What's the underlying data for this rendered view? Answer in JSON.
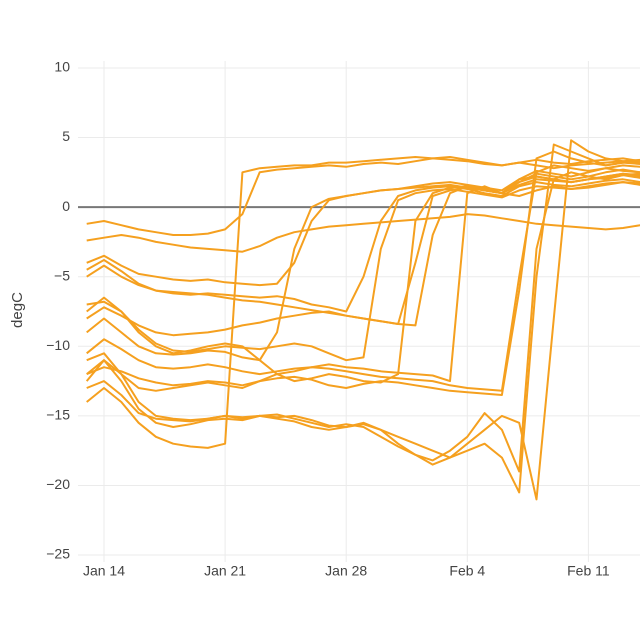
{
  "chart_data": {
    "type": "line",
    "y_label": "degC",
    "color": "#f5a01f",
    "grid": true,
    "zeroline": true,
    "ylim": [
      -25.5,
      10.5
    ],
    "yticks": [
      {
        "value": -25,
        "label": "−25"
      },
      {
        "value": -20,
        "label": "−20"
      },
      {
        "value": -15,
        "label": "−15"
      },
      {
        "value": -10,
        "label": "−10"
      },
      {
        "value": -5,
        "label": "−5"
      },
      0,
      5,
      10
    ],
    "categories": [
      null,
      "Jan 14",
      null,
      null,
      null,
      null,
      null,
      null,
      "Jan 21",
      null,
      null,
      null,
      null,
      null,
      null,
      "Jan 28",
      null,
      null,
      null,
      null,
      null,
      null,
      "Feb 4",
      null,
      null,
      null,
      null,
      null,
      null,
      "Feb 11",
      null,
      null,
      null
    ],
    "series": [
      {
        "values": [
          -1.2,
          -1.0,
          -1.3,
          -1.6,
          -1.8,
          -2.0,
          -2.0,
          -1.9,
          -1.6,
          -0.5,
          2.5,
          2.7,
          2.8,
          2.9,
          3.0,
          2.9,
          3.1,
          3.2,
          3.1,
          3.3,
          3.5,
          3.6,
          3.4,
          3.2,
          3.0,
          3.2,
          3.0,
          2.8,
          3.0,
          3.1,
          3.2,
          3.3,
          3.2
        ]
      },
      {
        "values": [
          -2.4,
          -2.2,
          -2.0,
          -2.2,
          -2.5,
          -2.7,
          -2.9,
          -3.0,
          -3.1,
          -3.2,
          -2.8,
          -2.2,
          -1.8,
          -1.6,
          -1.4,
          -1.3,
          -1.2,
          -1.1,
          -1.0,
          -0.9,
          -0.8,
          -0.7,
          -0.5,
          -0.6,
          -0.8,
          -1.0,
          -1.2,
          -1.3,
          -1.4,
          -1.5,
          -1.6,
          -1.5,
          -1.3
        ]
      },
      {
        "values": [
          -4.0,
          -3.5,
          -4.2,
          -4.8,
          -5.0,
          -5.2,
          -5.3,
          -5.2,
          -5.4,
          -5.5,
          -5.6,
          -5.5,
          -4.0,
          -1.0,
          0.5,
          0.8,
          1.0,
          1.2,
          1.3,
          1.5,
          1.7,
          1.8,
          1.6,
          1.4,
          1.2,
          2.0,
          2.2,
          2.0,
          1.8,
          2.0,
          2.2,
          2.4,
          2.3
        ]
      },
      {
        "values": [
          -4.5,
          -3.8,
          -4.6,
          -5.5,
          -6.0,
          -6.2,
          -6.3,
          -6.2,
          -6.3,
          -6.4,
          -6.5,
          -6.4,
          -6.6,
          -7.0,
          -7.2,
          -7.5,
          -5.0,
          -1.0,
          0.8,
          1.2,
          1.4,
          1.5,
          1.3,
          1.0,
          0.8,
          1.5,
          1.8,
          1.6,
          1.5,
          1.7,
          1.9,
          2.0,
          1.8
        ]
      },
      {
        "values": [
          -5.0,
          -4.2,
          -5.0,
          -5.6,
          -6.0,
          -6.1,
          -6.2,
          -6.3,
          -6.5,
          -6.7,
          -6.8,
          -7.0,
          -7.2,
          -7.4,
          -7.6,
          -7.8,
          -8.0,
          -8.2,
          -8.4,
          -4.0,
          0.8,
          1.2,
          1.4,
          1.2,
          1.0,
          2.0,
          2.6,
          2.4,
          2.2,
          2.5,
          2.8,
          2.6,
          2.5
        ]
      },
      {
        "values": [
          -8.0,
          -7.2,
          -7.8,
          -8.5,
          -9.0,
          -9.2,
          -9.1,
          -9.0,
          -8.8,
          -8.5,
          -8.3,
          -8.0,
          -7.8,
          -7.6,
          -7.5,
          -7.8,
          -8.0,
          -8.2,
          -8.4,
          -8.5,
          -2.0,
          1.0,
          1.5,
          1.2,
          1.0,
          1.8,
          2.2,
          2.0,
          1.8,
          2.0,
          2.2,
          2.4,
          2.2
        ]
      },
      {
        "values": [
          -7.5,
          -6.5,
          -7.5,
          -8.8,
          -9.8,
          -10.3,
          -10.4,
          -10.2,
          -10.0,
          -10.1,
          -10.2,
          -10.0,
          -9.8,
          -10.0,
          -10.5,
          -11.0,
          -10.8,
          -3.0,
          0.5,
          1.0,
          1.2,
          1.3,
          1.1,
          0.9,
          0.7,
          1.2,
          1.5,
          1.4,
          1.3,
          1.5,
          1.7,
          1.8,
          1.6
        ]
      },
      {
        "values": [
          -9.0,
          -8.0,
          -9.0,
          -10.0,
          -10.5,
          -10.6,
          -10.5,
          -10.3,
          -10.4,
          -10.8,
          -11.0,
          -9.0,
          -3.0,
          0.0,
          0.6,
          0.8,
          1.0,
          1.2,
          1.3,
          1.4,
          1.5,
          1.6,
          1.4,
          1.2,
          1.0,
          1.6,
          2.0,
          1.9,
          1.8,
          2.0,
          2.1,
          2.3,
          2.1
        ]
      },
      {
        "values": [
          -10.5,
          -9.5,
          -10.2,
          -11.0,
          -11.5,
          -11.6,
          -11.5,
          -11.3,
          -11.5,
          -11.8,
          -12.0,
          -11.8,
          -11.6,
          -11.5,
          -11.6,
          -11.8,
          -12.0,
          -12.2,
          -12.3,
          -12.4,
          -12.5,
          -12.8,
          -13.0,
          -13.1,
          -13.2,
          -5.0,
          2.5,
          3.0,
          2.8,
          2.6,
          2.8,
          3.0,
          2.9
        ]
      },
      {
        "values": [
          -12.0,
          -11.5,
          -11.8,
          -12.3,
          -12.6,
          -12.8,
          -12.7,
          -12.5,
          -12.6,
          -12.8,
          -12.5,
          -12.3,
          -12.2,
          -12.4,
          -12.8,
          -13.0,
          -12.7,
          -12.5,
          -12.6,
          -12.8,
          -13.0,
          -13.2,
          -13.3,
          -13.4,
          -13.5,
          -6.0,
          3.5,
          4.0,
          3.5,
          3.2,
          3.0,
          3.2,
          3.1
        ]
      },
      {
        "values": [
          -12.5,
          -11.0,
          -12.0,
          -13.0,
          -13.2,
          -13.0,
          -12.8,
          -12.6,
          -12.8,
          -13.0,
          -12.5,
          -12.0,
          -11.8,
          -11.5,
          -11.3,
          -11.5,
          -11.6,
          -11.8,
          -11.9,
          -12.0,
          -12.1,
          -12.5,
          1.0,
          1.5,
          1.0,
          0.8,
          1.2,
          1.5,
          1.3,
          1.4,
          1.6,
          1.8,
          1.7
        ]
      },
      {
        "values": [
          -11.0,
          -10.5,
          -12.0,
          -14.0,
          -15.0,
          -15.2,
          -15.3,
          -15.2,
          -15.0,
          -15.2,
          -15.0,
          -15.1,
          -15.0,
          -15.3,
          -15.7,
          -15.8,
          -15.6,
          -16.0,
          -16.5,
          -17.0,
          -17.5,
          -18.0,
          -17.5,
          -17.0,
          -18.0,
          -20.5,
          -5.0,
          4.5,
          4.0,
          3.5,
          3.0,
          3.2,
          3.3
        ]
      },
      {
        "values": [
          -12.0,
          -11.0,
          -12.5,
          -14.5,
          -15.5,
          -15.8,
          -15.6,
          -15.3,
          -15.2,
          -15.3,
          -15.0,
          -15.2,
          -15.4,
          -15.8,
          -16.0,
          -15.8,
          -15.5,
          -16.0,
          -17.0,
          -17.8,
          -18.5,
          -18.0,
          -17.0,
          -16.0,
          -15.0,
          -15.5,
          -21.0,
          -8.0,
          4.8,
          4.0,
          3.5,
          3.3,
          3.4
        ]
      },
      {
        "values": [
          -14.0,
          -13.0,
          -14.0,
          -15.5,
          -16.5,
          -17.0,
          -17.2,
          -17.3,
          -17.0,
          2.5,
          2.8,
          2.9,
          3.0,
          3.0,
          3.2,
          3.2,
          3.3,
          3.4,
          3.5,
          3.6,
          3.5,
          3.4,
          3.3,
          3.1,
          3.0,
          3.2,
          3.4,
          3.2,
          3.1,
          3.3,
          3.4,
          3.5,
          3.3
        ]
      },
      {
        "values": [
          -13.0,
          -12.5,
          -13.5,
          -14.8,
          -15.2,
          -15.3,
          -15.4,
          -15.2,
          -15.0,
          -15.1,
          -15.0,
          -14.9,
          -15.2,
          -15.5,
          -15.8,
          -15.6,
          -15.8,
          -16.5,
          -17.2,
          -17.8,
          -18.2,
          -17.5,
          -16.5,
          -14.8,
          -16.0,
          -19.0,
          -3.0,
          2.0,
          2.5,
          2.2,
          2.0,
          2.3,
          2.4
        ]
      },
      {
        "values": [
          -7.0,
          -6.8,
          -7.5,
          -9.0,
          -10.0,
          -10.5,
          -10.3,
          -10.0,
          -9.8,
          -10.0,
          -11.0,
          -12.0,
          -12.5,
          -12.3,
          -12.0,
          -12.2,
          -12.5,
          -12.6,
          -12.0,
          -1.0,
          1.0,
          1.4,
          1.5,
          1.3,
          1.0,
          1.8,
          2.4,
          2.2,
          2.0,
          2.2,
          2.5,
          2.7,
          2.5
        ]
      }
    ]
  }
}
